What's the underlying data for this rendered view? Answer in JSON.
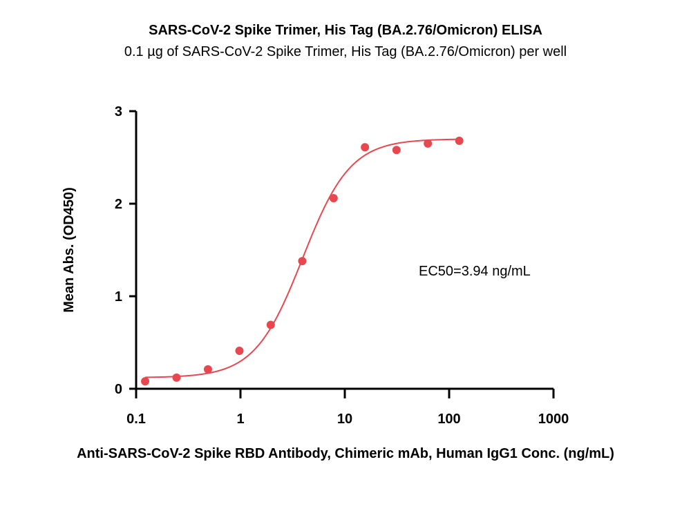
{
  "chart_data": {
    "type": "scatter",
    "title": "SARS-CoV-2 Spike Trimer, His Tag (BA.2.76/Omicron) ELISA",
    "subtitle": "0.1 µg of SARS-CoV-2 Spike Trimer, His Tag (BA.2.76/Omicron) per well",
    "xlabel": "Anti-SARS-CoV-2 Spike RBD Antibody, Chimeric mAb, Human IgG1 Conc. (ng/mL)",
    "ylabel": "Mean Abs. (OD450)",
    "x_scale": "log",
    "xlim": [
      0.1,
      1000
    ],
    "ylim": [
      0,
      3
    ],
    "x_ticks": [
      0.1,
      1,
      10,
      100,
      1000
    ],
    "x_tick_labels": [
      "0.1",
      "1",
      "10",
      "100",
      "1000"
    ],
    "y_ticks": [
      0,
      1,
      2,
      3
    ],
    "y_tick_labels": [
      "0",
      "1",
      "2",
      "3"
    ],
    "series": [
      {
        "color": "#e8474f",
        "x": [
          0.122,
          0.244,
          0.488,
          0.977,
          1.95,
          3.91,
          7.81,
          15.6,
          31.3,
          62.5,
          125
        ],
        "y": [
          0.08,
          0.12,
          0.21,
          0.41,
          0.69,
          1.38,
          2.06,
          2.61,
          2.58,
          2.65,
          2.68
        ]
      }
    ],
    "fit_curve": {
      "model": "4PL",
      "bottom": 0.12,
      "top": 2.7,
      "ec50": 3.94,
      "hill": 1.9,
      "color": "#e8474f"
    },
    "annotations": [
      {
        "text": "EC50=3.94 ng/mL"
      }
    ],
    "grid": false,
    "legend": "none"
  }
}
